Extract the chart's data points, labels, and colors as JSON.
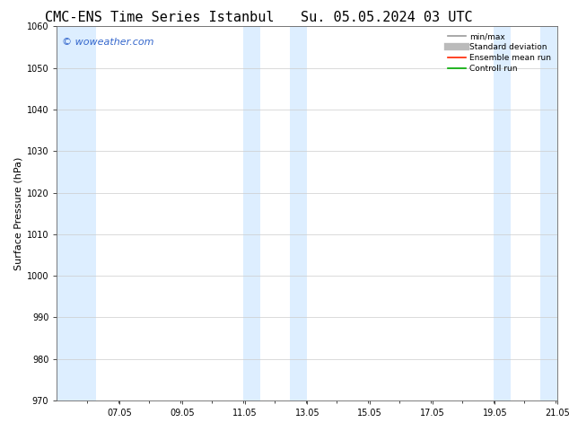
{
  "title_left": "CMC-ENS Time Series Istanbul",
  "title_right": "Su. 05.05.2024 03 UTC",
  "ylabel": "Surface Pressure (hPa)",
  "ylim": [
    970,
    1060
  ],
  "yticks": [
    970,
    980,
    990,
    1000,
    1010,
    1020,
    1030,
    1040,
    1050,
    1060
  ],
  "xlim_start": 5.04,
  "xlim_end": 21.06,
  "xtick_labels": [
    "07.05",
    "09.05",
    "11.05",
    "13.05",
    "15.05",
    "17.05",
    "19.05",
    "21.05"
  ],
  "xtick_positions": [
    7.05,
    9.05,
    11.05,
    13.05,
    15.05,
    17.05,
    19.05,
    21.05
  ],
  "shaded_bands": [
    {
      "x_start": 5.04,
      "x_end": 6.3
    },
    {
      "x_start": 11.0,
      "x_end": 11.55
    },
    {
      "x_start": 12.5,
      "x_end": 13.05
    },
    {
      "x_start": 19.0,
      "x_end": 19.55
    },
    {
      "x_start": 20.5,
      "x_end": 21.06
    }
  ],
  "band_color": "#ddeeff",
  "watermark_text": "© woweather.com",
  "watermark_color": "#3366cc",
  "legend_items": [
    {
      "label": "min/max",
      "color": "#999999",
      "lw": 1.2,
      "style": "solid"
    },
    {
      "label": "Standard deviation",
      "color": "#bbbbbb",
      "lw": 6,
      "style": "solid"
    },
    {
      "label": "Ensemble mean run",
      "color": "#ff2200",
      "lw": 1.2,
      "style": "solid"
    },
    {
      "label": "Controll run",
      "color": "#00aa00",
      "lw": 1.2,
      "style": "solid"
    }
  ],
  "bg_color": "#ffffff",
  "plot_bg_color": "#ffffff",
  "grid_color": "#cccccc",
  "title_fontsize": 11,
  "ylabel_fontsize": 8,
  "tick_fontsize": 7,
  "watermark_fontsize": 8
}
